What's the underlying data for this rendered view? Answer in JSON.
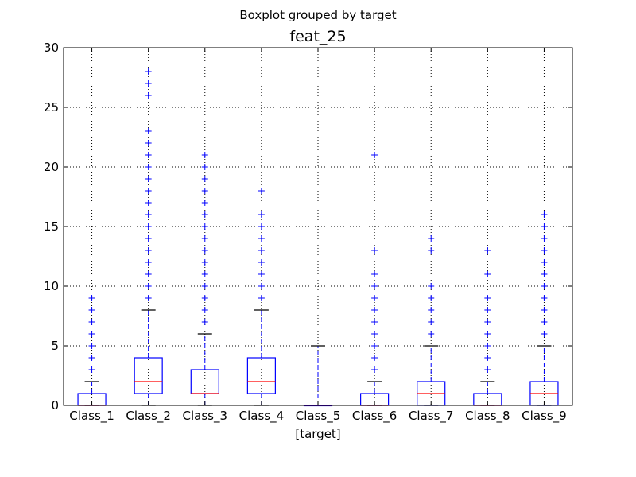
{
  "chart_data": {
    "type": "boxplot",
    "suptitle": "Boxplot grouped by target",
    "title": "feat_25",
    "xlabel": "[target]",
    "ylabel": "",
    "ylim": [
      0,
      30
    ],
    "yticks": [
      0,
      5,
      10,
      15,
      20,
      25,
      30
    ],
    "grid": true,
    "grid_style": "dotted",
    "colors": {
      "box": "#0000ff",
      "median": "#ff0000",
      "caps": "#000000",
      "fliers": "#0000ff",
      "grid": "#000000"
    },
    "categories": [
      "Class_1",
      "Class_2",
      "Class_3",
      "Class_4",
      "Class_5",
      "Class_6",
      "Class_7",
      "Class_8",
      "Class_9"
    ],
    "boxes": [
      {
        "label": "Class_1",
        "whislo": 0,
        "q1": 0,
        "med": 0,
        "q3": 1,
        "whishi": 2,
        "fliers": [
          3,
          4,
          5,
          6,
          7,
          8,
          9
        ]
      },
      {
        "label": "Class_2",
        "whislo": 0,
        "q1": 1,
        "med": 2,
        "q3": 4,
        "whishi": 8,
        "fliers": [
          9,
          10,
          11,
          12,
          13,
          14,
          15,
          16,
          17,
          18,
          19,
          20,
          21,
          22,
          23,
          26,
          27,
          28
        ]
      },
      {
        "label": "Class_3",
        "whislo": 0,
        "q1": 1,
        "med": 1,
        "q3": 3,
        "whishi": 6,
        "fliers": [
          7,
          8,
          9,
          10,
          11,
          12,
          13,
          14,
          15,
          16,
          17,
          18,
          19,
          20,
          21
        ]
      },
      {
        "label": "Class_4",
        "whislo": 0,
        "q1": 1,
        "med": 2,
        "q3": 4,
        "whishi": 8,
        "fliers": [
          9,
          10,
          11,
          12,
          13,
          14,
          15,
          16,
          18
        ]
      },
      {
        "label": "Class_5",
        "whislo": 0,
        "q1": 0,
        "med": 0,
        "q3": 0,
        "whishi": 5,
        "fliers": []
      },
      {
        "label": "Class_6",
        "whislo": 0,
        "q1": 0,
        "med": 0,
        "q3": 1,
        "whishi": 2,
        "fliers": [
          3,
          4,
          5,
          6,
          7,
          8,
          9,
          10,
          11,
          13,
          21
        ]
      },
      {
        "label": "Class_7",
        "whislo": 0,
        "q1": 0,
        "med": 1,
        "q3": 2,
        "whishi": 5,
        "fliers": [
          6,
          7,
          8,
          9,
          10,
          13,
          14
        ]
      },
      {
        "label": "Class_8",
        "whislo": 0,
        "q1": 0,
        "med": 0,
        "q3": 1,
        "whishi": 2,
        "fliers": [
          3,
          4,
          5,
          6,
          7,
          8,
          9,
          11,
          13
        ]
      },
      {
        "label": "Class_9",
        "whislo": 0,
        "q1": 0,
        "med": 1,
        "q3": 2,
        "whishi": 5,
        "fliers": [
          6,
          7,
          8,
          9,
          10,
          11,
          12,
          13,
          14,
          15,
          16
        ]
      }
    ]
  }
}
